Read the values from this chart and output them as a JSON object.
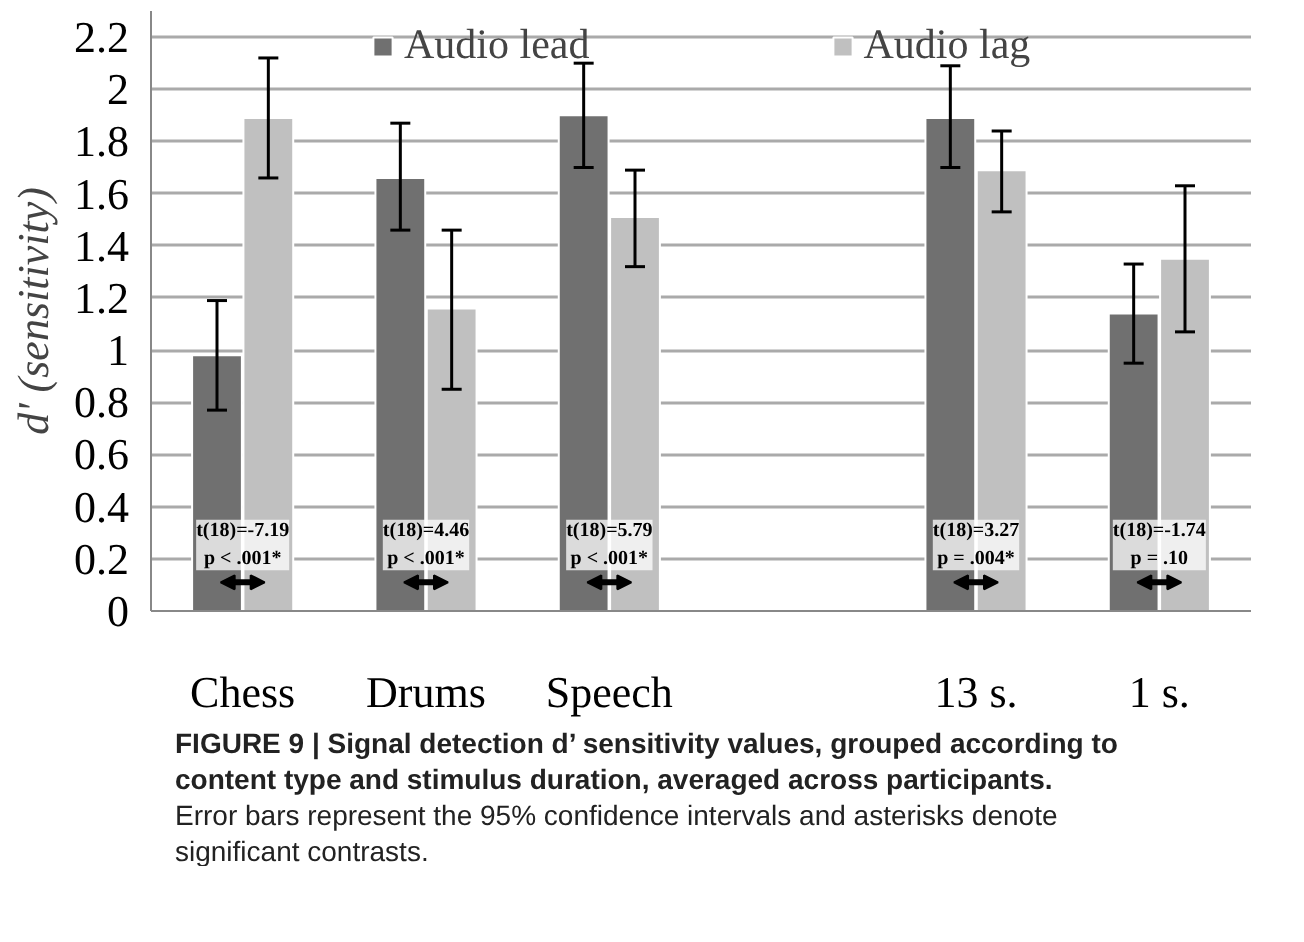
{
  "chart_data": {
    "type": "bar",
    "ylabel": "d' (sensitivity)",
    "categories": [
      "Chess",
      "Drums",
      "Speech",
      null,
      "13 s.",
      "1 s."
    ],
    "series": [
      {
        "name": "Audio lead",
        "color": "#707070",
        "values": [
          0.98,
          1.66,
          1.9,
          null,
          1.89,
          1.14
        ],
        "errors": [
          [
            0.77,
            1.19
          ],
          [
            1.46,
            1.87
          ],
          [
            1.7,
            2.1
          ],
          null,
          [
            1.7,
            2.09
          ],
          [
            0.95,
            1.33
          ]
        ]
      },
      {
        "name": "Audio lag",
        "color": "#c0c0c0",
        "values": [
          1.89,
          1.16,
          1.51,
          null,
          1.69,
          1.35
        ],
        "errors": [
          [
            1.66,
            2.12
          ],
          [
            0.85,
            1.46
          ],
          [
            1.32,
            1.69
          ],
          null,
          [
            1.53,
            1.84
          ],
          [
            1.07,
            1.63
          ]
        ]
      }
    ],
    "ylim": [
      0,
      2.3
    ],
    "yticks": [
      0,
      0.2,
      0.4,
      0.6,
      0.8,
      {
        "value": 1,
        "label": "1"
      },
      1.2,
      1.4,
      1.6,
      1.8,
      {
        "value": 2,
        "label": "2"
      },
      2.2
    ],
    "grid": "y",
    "legend": "top",
    "annotations": [
      {
        "text": "t(18)=-7.19\np < .001*",
        "x": "Chess",
        "y": 0.35
      },
      {
        "text": "t(18)=4.46\np < .001*",
        "x": "Drums",
        "y": 0.35
      },
      {
        "text": "t(18)=5.79\np < .001*",
        "x": "Speech",
        "y": 0.35
      },
      {
        "text": "t(18)=3.27\np = .004*",
        "x": "13 s.",
        "y": 0.35
      },
      {
        "text": "t(18)=-1.74\np = .10",
        "x": "1 s.",
        "y": 0.35
      },
      "FIGURE 9 | Signal detection d’ sensitivity values, grouped according to content type and stimulus duration, averaged across participants.",
      "Error bars represent the 95% confidence intervals and asterisks denote significant contrasts."
    ]
  }
}
